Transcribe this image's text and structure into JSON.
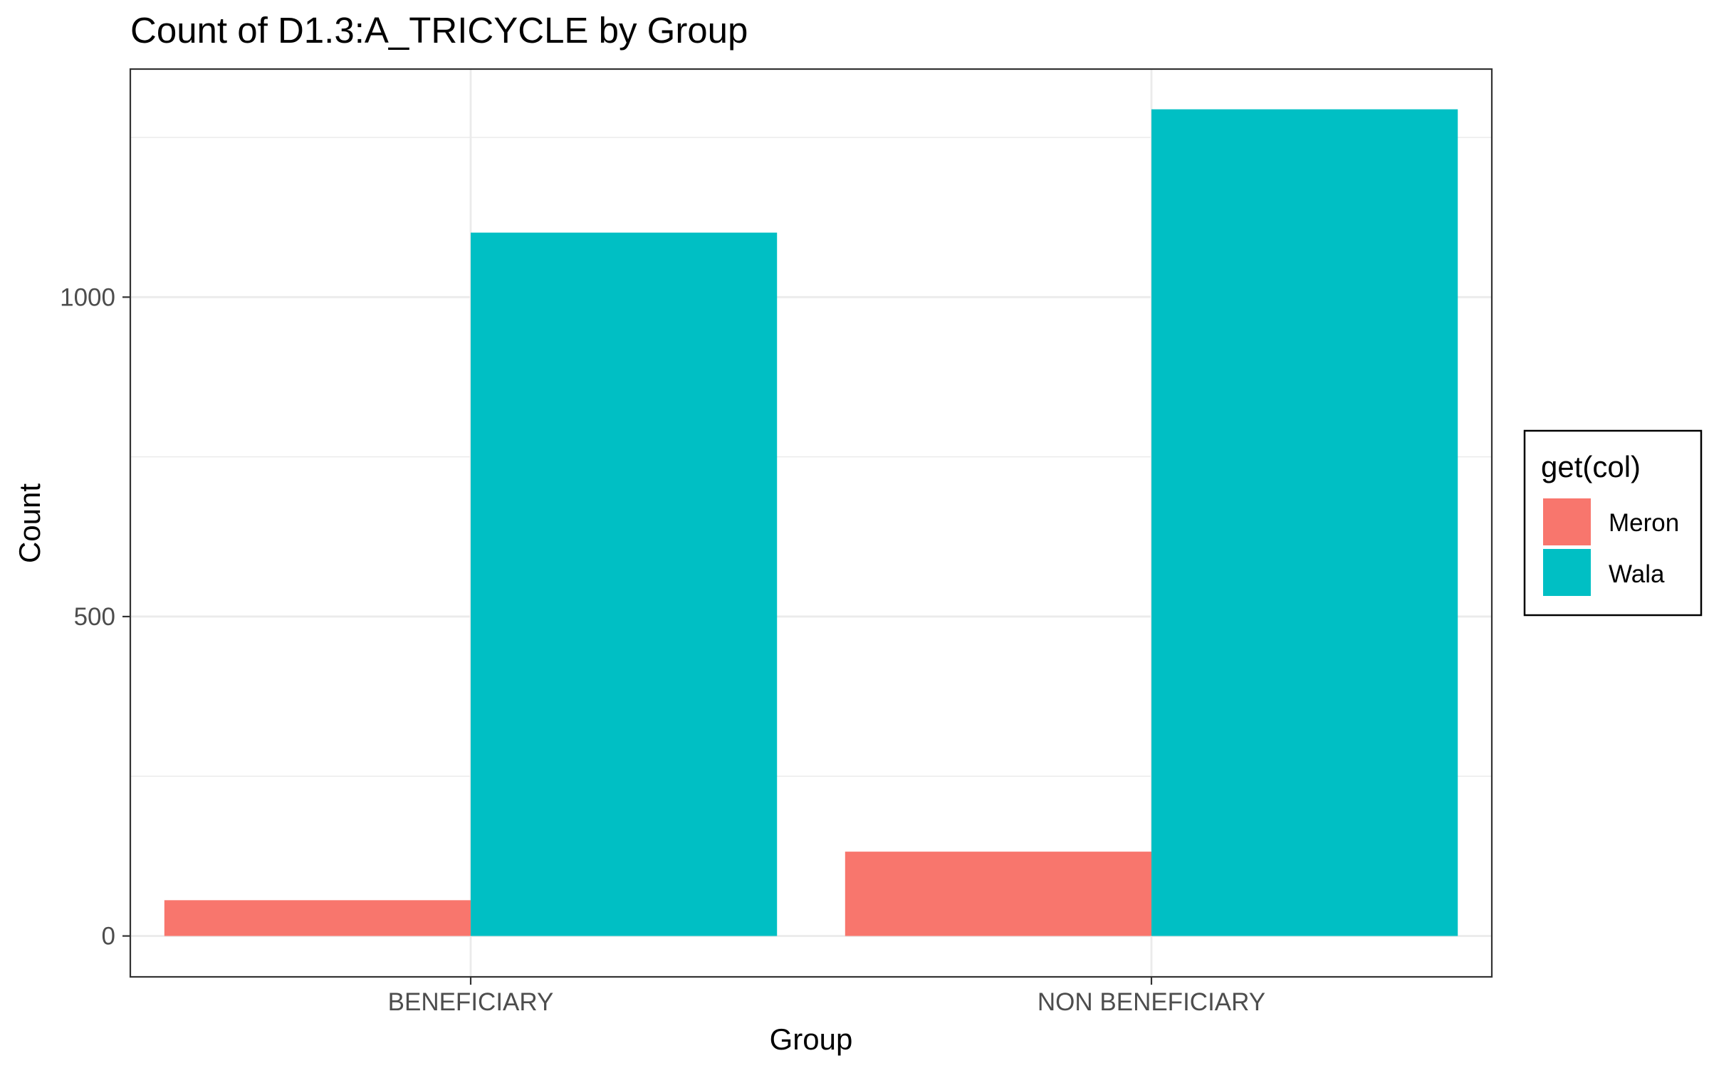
{
  "chart_data": {
    "type": "bar",
    "title": "Count of D1.3:A_TRICYCLE by Group",
    "xlabel": "Group",
    "ylabel": "Count",
    "categories": [
      "BENEFICIARY",
      "NON BENEFICIARY"
    ],
    "series": [
      {
        "name": "Meron",
        "values": [
          56,
          132
        ],
        "color": "#F8766D"
      },
      {
        "name": "Wala",
        "values": [
          1101,
          1294
        ],
        "color": "#00BFC4"
      }
    ],
    "ylim": [
      -64,
      1357
    ],
    "yticks": [
      0,
      500,
      1000
    ],
    "yticks_minor": [
      250,
      750,
      1250
    ],
    "legend": {
      "title": "get(col)",
      "placement": "right"
    },
    "grid": true,
    "panel_border": true
  }
}
